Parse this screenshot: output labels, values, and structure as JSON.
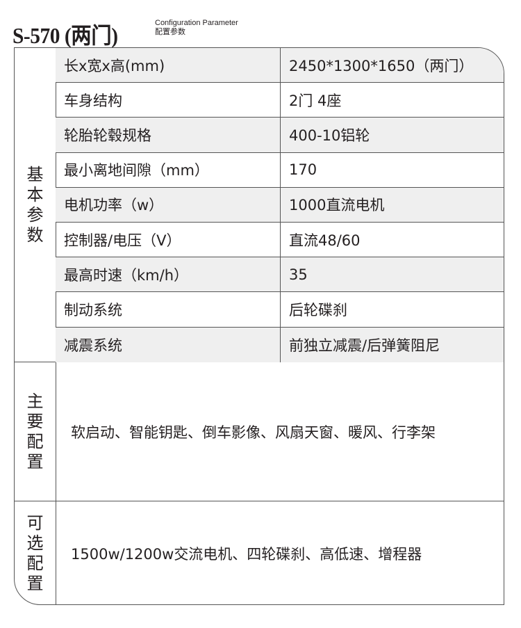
{
  "header": {
    "model": "S-570 (两门)",
    "subtitle_en": "Configuration Parameter",
    "subtitle_cn": "配置参数"
  },
  "basic": {
    "label": "基本参数",
    "rows": [
      {
        "name": "长x宽x高(mm)",
        "value": "2450*1300*1650（两门）"
      },
      {
        "name": "车身结构",
        "value": "2门 4座"
      },
      {
        "name": "轮胎轮毂规格",
        "value": "400-10铝轮"
      },
      {
        "name": "最小离地间隙（mm）",
        "value": "170"
      },
      {
        "name": "电机功率（w）",
        "value": "1000直流电机"
      },
      {
        "name": "控制器/电压（V）",
        "value": "直流48/60"
      },
      {
        "name": "最高时速（km/h）",
        "value": "35"
      },
      {
        "name": "制动系统",
        "value": "后轮碟刹"
      },
      {
        "name": "减震系统",
        "value": "前独立减震/后弹簧阻尼"
      }
    ]
  },
  "main": {
    "label": "主要配置",
    "text": "软启动、智能钥匙、倒车影像、风扇天窗、暖风、行李架"
  },
  "optional": {
    "label": "可选配置",
    "text": "1500w/1200w交流电机、四轮碟刹、高低速、增程器"
  },
  "colors": {
    "stripe": "#efefef",
    "border": "#555555"
  }
}
